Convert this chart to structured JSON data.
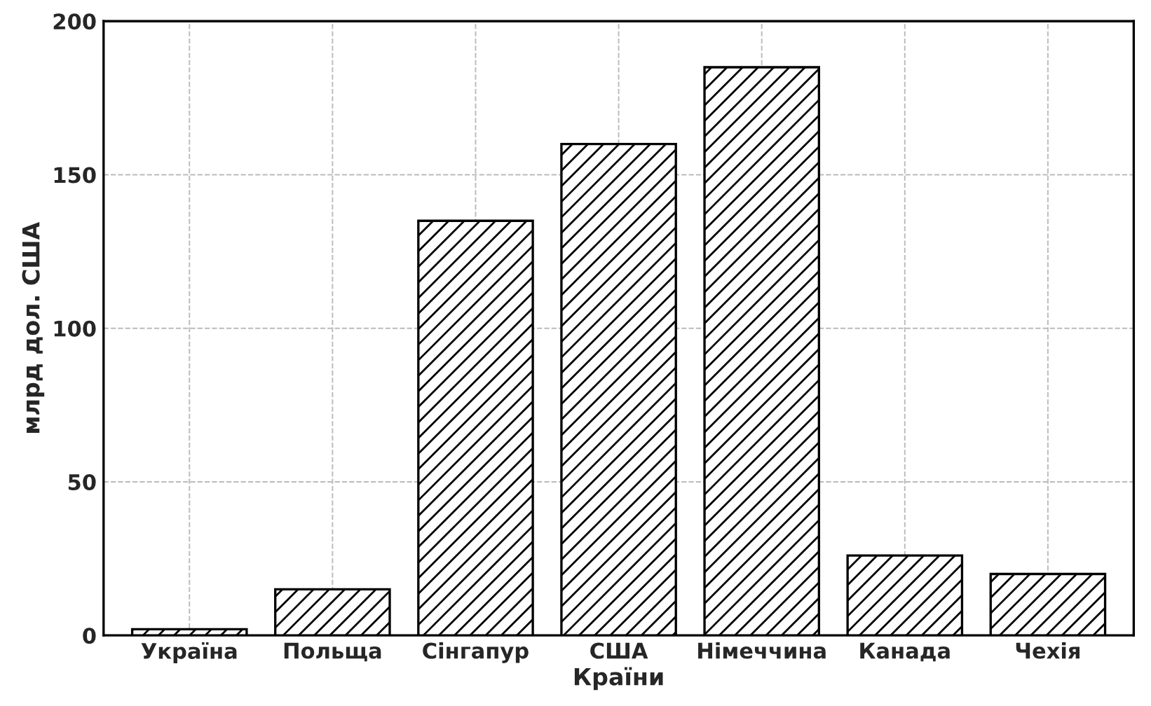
{
  "chart_data": {
    "type": "bar",
    "xlabel": "Країни",
    "ylabel": "млрд дол. США",
    "categories": [
      "Україна",
      "Польща",
      "Сінгапур",
      "США",
      "Німеччина",
      "Канада",
      "Чехія"
    ],
    "values": [
      2,
      15,
      135,
      160,
      185,
      26,
      20
    ],
    "color": "#000000",
    "ylim": [
      0,
      200
    ],
    "yticks": [
      0,
      50,
      100,
      150,
      200
    ],
    "grid": true
  }
}
